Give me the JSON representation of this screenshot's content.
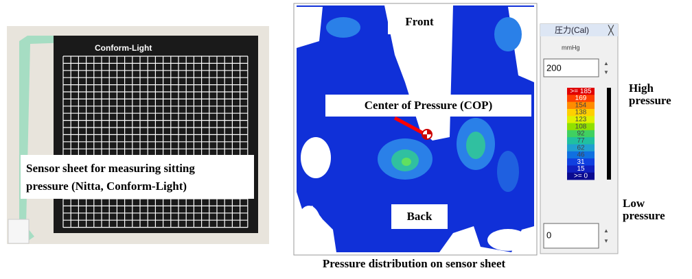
{
  "photo": {
    "brand": "Conform-Light",
    "caption_lines": [
      "Sensor sheet for measuring sitting",
      "pressure (Nitta, Conform-Light)"
    ]
  },
  "map": {
    "front": "Front",
    "cop": "Center of Pressure (COP)",
    "back": "Back",
    "caption": "Pressure distribution on sensor sheet"
  },
  "panel": {
    "title": "圧力(Cal)",
    "unit": "mmHg",
    "max": "200",
    "min": "0",
    "legend": [
      {
        "label": ">= 185",
        "color": "#e00000"
      },
      {
        "label": "169",
        "color": "#ff4000"
      },
      {
        "label": "154",
        "color": "#ff8c00"
      },
      {
        "label": "138",
        "color": "#ffd000"
      },
      {
        "label": "123",
        "color": "#e0f000"
      },
      {
        "label": "108",
        "color": "#90e000"
      },
      {
        "label": "92",
        "color": "#40d060"
      },
      {
        "label": "77",
        "color": "#20c0a0"
      },
      {
        "label": "62",
        "color": "#20a0d0"
      },
      {
        "label": "46",
        "color": "#1070e0"
      },
      {
        "label": "31",
        "color": "#1040e0"
      },
      {
        "label": "15",
        "color": "#1020c0"
      },
      {
        "label": ">= 0",
        "color": "#0a0a90"
      }
    ]
  },
  "scale": {
    "high_lines": [
      "High",
      "pressure"
    ],
    "low_lines": [
      "Low",
      "pressure"
    ]
  }
}
